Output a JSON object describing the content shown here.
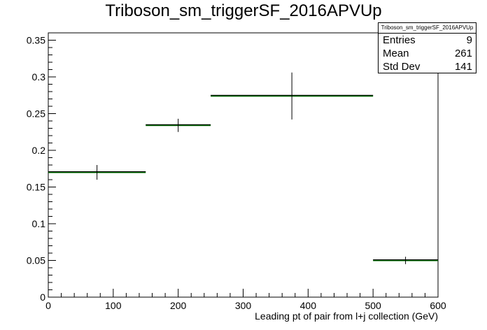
{
  "chart_data": {
    "type": "histogram",
    "title": "Triboson_sm_triggerSF_2016APVUp",
    "xlabel": "Leading pt of pair from l+j collection (GeV)",
    "ylabel": "",
    "xlim": [
      0,
      600
    ],
    "ylim": [
      0,
      0.36
    ],
    "x_ticks": [
      0,
      100,
      200,
      300,
      400,
      500,
      600
    ],
    "y_ticks": [
      0,
      0.05,
      0.1,
      0.15,
      0.2,
      0.25,
      0.3,
      0.35
    ],
    "bins": [
      {
        "x_low": 0,
        "x_high": 150,
        "center": 75,
        "value": 0.17,
        "err": 0.01
      },
      {
        "x_low": 150,
        "x_high": 250,
        "center": 200,
        "value": 0.234,
        "err": 0.009
      },
      {
        "x_low": 250,
        "x_high": 500,
        "center": 375,
        "value": 0.274,
        "err": 0.032
      },
      {
        "x_low": 500,
        "x_high": 600,
        "center": 550,
        "value": 0.05,
        "err": 0.005
      }
    ],
    "colors": {
      "line": "#006400",
      "overlay": "#000000"
    },
    "stats": {
      "header": "Triboson_sm_triggerSF_2016APVUp",
      "entries_label": "Entries",
      "entries": "9",
      "mean_label": "Mean",
      "mean": "261",
      "stddev_label": "Std Dev",
      "stddev": "141"
    }
  }
}
